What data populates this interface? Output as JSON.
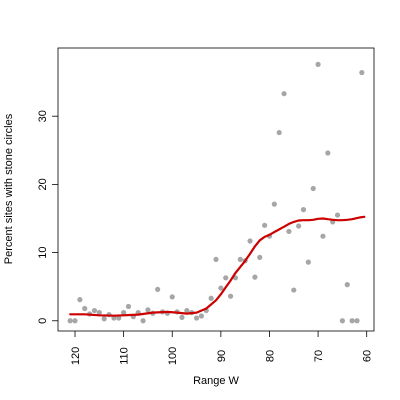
{
  "chart_data": {
    "type": "scatter",
    "title": "",
    "xlabel": "Range W",
    "ylabel": "Percent sites with stone circles",
    "xlim": [
      123.5,
      58.5
    ],
    "ylim": [
      -1.5,
      40
    ],
    "x_reversed": true,
    "x_ticks": [
      120,
      110,
      100,
      90,
      80,
      70,
      60
    ],
    "y_ticks": [
      0,
      10,
      20,
      30
    ],
    "grid": false,
    "legend": "none",
    "colors": {
      "points": "#a6a6a6",
      "smooth": "#cc0000"
    },
    "series": [
      {
        "kind": "points",
        "points": [
          [
            121,
            0
          ],
          [
            120,
            0
          ],
          [
            119,
            3.1
          ],
          [
            118,
            1.8
          ],
          [
            117,
            1.0
          ],
          [
            116,
            1.5
          ],
          [
            115,
            1.2
          ],
          [
            114,
            0.3
          ],
          [
            113,
            0.9
          ],
          [
            112,
            0.4
          ],
          [
            111,
            0.4
          ],
          [
            110,
            1.2
          ],
          [
            109,
            2.1
          ],
          [
            108,
            0.6
          ],
          [
            107,
            1.2
          ],
          [
            106,
            0.0
          ],
          [
            105,
            1.6
          ],
          [
            104,
            1.1
          ],
          [
            103,
            4.6
          ],
          [
            102,
            1.3
          ],
          [
            101,
            1.1
          ],
          [
            100,
            3.5
          ],
          [
            99,
            1.3
          ],
          [
            98,
            0.5
          ],
          [
            97,
            1.5
          ],
          [
            96,
            1.2
          ],
          [
            95,
            0.4
          ],
          [
            94,
            0.7
          ],
          [
            93,
            1.5
          ],
          [
            92,
            3.3
          ],
          [
            91,
            9.0
          ],
          [
            90,
            4.8
          ],
          [
            89,
            6.3
          ],
          [
            88,
            3.6
          ],
          [
            87,
            6.3
          ],
          [
            86,
            9.0
          ],
          [
            85,
            8.8
          ],
          [
            84,
            11.7
          ],
          [
            83,
            6.4
          ],
          [
            82,
            9.3
          ],
          [
            81,
            14.0
          ],
          [
            80,
            12.4
          ],
          [
            79,
            17.1
          ],
          [
            78,
            27.6
          ],
          [
            77,
            33.3
          ],
          [
            76,
            13.1
          ],
          [
            75,
            4.5
          ],
          [
            74,
            13.9
          ],
          [
            73,
            16.3
          ],
          [
            72,
            8.6
          ],
          [
            71,
            19.4
          ],
          [
            70,
            37.6
          ],
          [
            69,
            12.4
          ],
          [
            68,
            24.6
          ],
          [
            67,
            14.5
          ],
          [
            66,
            15.5
          ],
          [
            65,
            0
          ],
          [
            64,
            5.3
          ],
          [
            63,
            0
          ],
          [
            62,
            0
          ],
          [
            61,
            36.4
          ]
        ]
      },
      {
        "kind": "smooth",
        "points": [
          [
            121,
            0.95
          ],
          [
            118,
            0.95
          ],
          [
            115,
            0.8
          ],
          [
            112,
            0.75
          ],
          [
            110,
            0.8
          ],
          [
            107,
            0.9
          ],
          [
            104,
            1.2
          ],
          [
            101,
            1.3
          ],
          [
            99,
            1.2
          ],
          [
            97,
            1.05
          ],
          [
            95,
            1.2
          ],
          [
            93,
            1.8
          ],
          [
            91,
            3.0
          ],
          [
            90,
            3.9
          ],
          [
            89,
            4.9
          ],
          [
            88,
            5.9
          ],
          [
            87,
            7.0
          ],
          [
            86,
            7.9
          ],
          [
            85,
            8.8
          ],
          [
            84,
            9.8
          ],
          [
            83,
            10.9
          ],
          [
            82,
            11.8
          ],
          [
            81,
            12.3
          ],
          [
            80,
            12.6
          ],
          [
            79,
            13.0
          ],
          [
            78,
            13.4
          ],
          [
            77,
            13.8
          ],
          [
            76,
            14.2
          ],
          [
            75,
            14.5
          ],
          [
            74,
            14.7
          ],
          [
            73,
            14.75
          ],
          [
            72,
            14.75
          ],
          [
            71,
            14.8
          ],
          [
            70,
            14.95
          ],
          [
            69,
            15.0
          ],
          [
            68,
            14.9
          ],
          [
            67,
            14.8
          ],
          [
            66,
            14.75
          ],
          [
            65,
            14.75
          ],
          [
            64,
            14.8
          ],
          [
            63,
            14.9
          ],
          [
            62,
            15.05
          ],
          [
            61,
            15.2
          ],
          [
            60.5,
            15.25
          ]
        ]
      }
    ]
  }
}
